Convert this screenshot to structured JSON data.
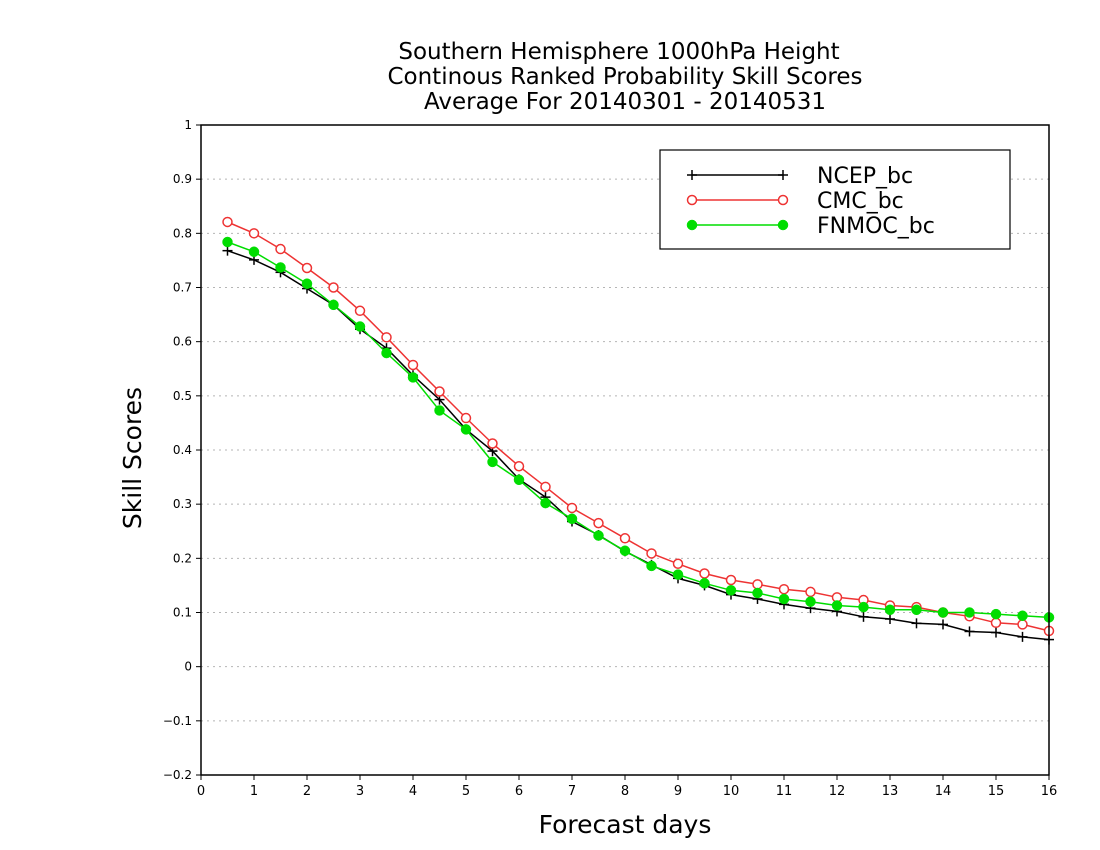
{
  "chart_data": {
    "type": "line",
    "title_lines": [
      "Southern Hemisphere 1000hPa Height",
      "Continous Ranked Probability Skill Scores",
      "Average For 20140301 - 20140531"
    ],
    "xlabel": "Forecast days",
    "ylabel": "Skill Scores",
    "xlim": [
      0,
      16
    ],
    "ylim": [
      -0.2,
      1
    ],
    "xticks": [
      0,
      1,
      2,
      3,
      4,
      5,
      6,
      7,
      8,
      9,
      10,
      11,
      12,
      13,
      14,
      15,
      16
    ],
    "yticks": [
      -0.2,
      -0.1,
      0,
      0.1,
      0.2,
      0.3,
      0.4,
      0.5,
      0.6,
      0.7,
      0.8,
      0.9,
      1
    ],
    "ytick_labels": [
      "−0.2",
      "−0.1",
      "0",
      "0.1",
      "0.2",
      "0.3",
      "0.4",
      "0.5",
      "0.6",
      "0.7",
      "0.8",
      "0.9",
      "1"
    ],
    "grid": "horizontal dotted",
    "legend_position": "top-right",
    "x": [
      0.5,
      1.0,
      1.5,
      2.0,
      2.5,
      3.0,
      3.5,
      4.0,
      4.5,
      5.0,
      5.5,
      6.0,
      6.5,
      7.0,
      7.5,
      8.0,
      8.5,
      9.0,
      9.5,
      10.0,
      10.5,
      11.0,
      11.5,
      12.0,
      12.5,
      13.0,
      13.5,
      14.0,
      14.5,
      15.0,
      15.5,
      16.0
    ],
    "series": [
      {
        "name": "NCEP_bc",
        "color": "#000000",
        "marker": "plus",
        "values": [
          0.768,
          0.751,
          0.728,
          0.698,
          0.668,
          0.623,
          0.588,
          0.538,
          0.493,
          0.438,
          0.398,
          0.346,
          0.313,
          0.268,
          0.243,
          0.213,
          0.188,
          0.163,
          0.15,
          0.133,
          0.125,
          0.115,
          0.108,
          0.102,
          0.092,
          0.088,
          0.08,
          0.078,
          0.065,
          0.063,
          0.055,
          0.05
        ]
      },
      {
        "name": "CMC_bc",
        "color": "#ee3333",
        "marker": "open-circle",
        "values": [
          0.821,
          0.8,
          0.771,
          0.736,
          0.7,
          0.657,
          0.608,
          0.557,
          0.508,
          0.459,
          0.412,
          0.37,
          0.332,
          0.293,
          0.265,
          0.237,
          0.209,
          0.19,
          0.172,
          0.16,
          0.152,
          0.143,
          0.138,
          0.128,
          0.123,
          0.113,
          0.11,
          0.1,
          0.093,
          0.081,
          0.078,
          0.066
        ]
      },
      {
        "name": "FNMOC_bc",
        "color": "#00dd00",
        "marker": "filled-circle",
        "values": [
          0.784,
          0.766,
          0.737,
          0.707,
          0.668,
          0.628,
          0.579,
          0.534,
          0.473,
          0.438,
          0.378,
          0.345,
          0.302,
          0.273,
          0.242,
          0.214,
          0.186,
          0.17,
          0.154,
          0.141,
          0.136,
          0.125,
          0.12,
          0.113,
          0.11,
          0.105,
          0.105,
          0.1,
          0.1,
          0.097,
          0.094,
          0.091
        ]
      }
    ]
  }
}
